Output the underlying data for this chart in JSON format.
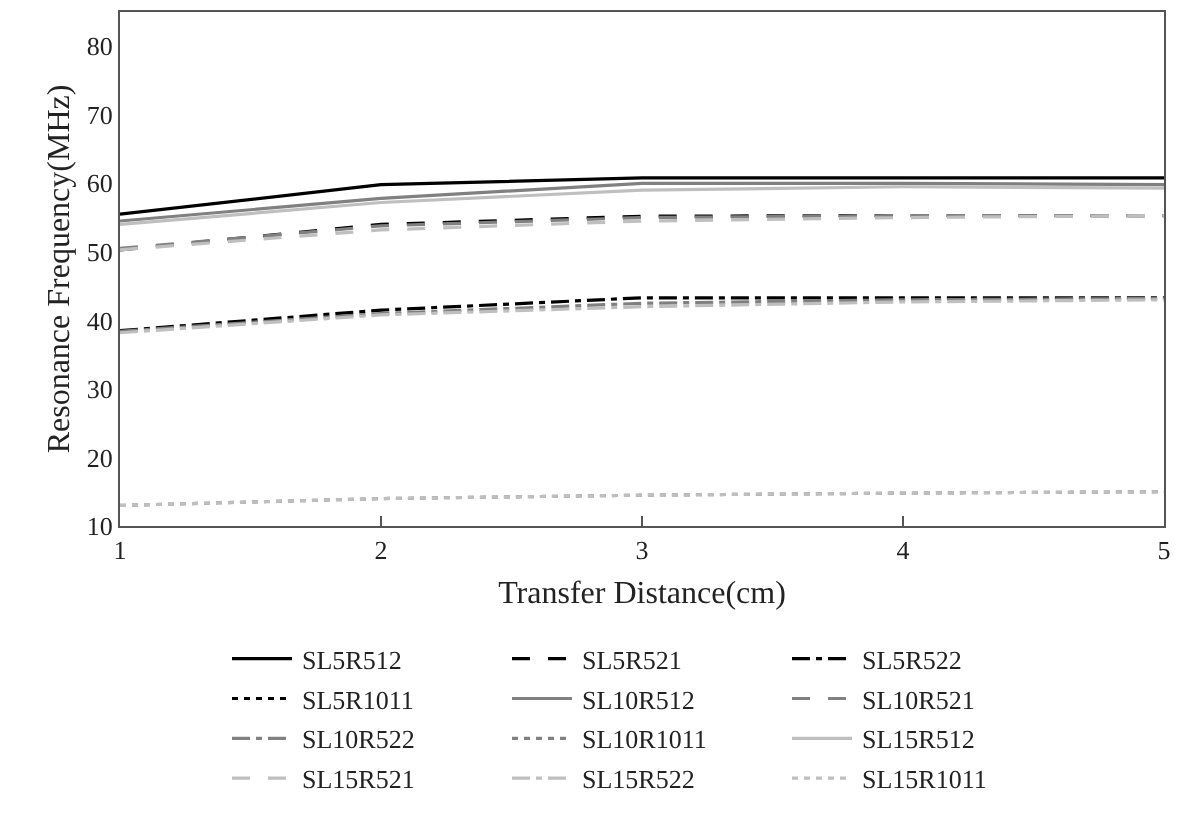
{
  "chart_data": {
    "type": "line",
    "xlabel": "Transfer Distance(cm)",
    "ylabel": "Resonance Frequency(MHz)",
    "x": [
      1,
      2,
      3,
      4,
      5
    ],
    "xlim": [
      1,
      5
    ],
    "xticks": [
      1,
      2,
      3,
      4,
      5
    ],
    "ylim": [
      10,
      85
    ],
    "yticks": [
      10,
      20,
      30,
      40,
      50,
      60,
      70,
      80
    ],
    "grid": false,
    "legend": "bottom",
    "marker": "none",
    "series": [
      {
        "name": "SL5R512",
        "color": "#000000",
        "line_style": "solid",
        "values": [
          55.5,
          59.8,
          60.8,
          60.8,
          60.8
        ]
      },
      {
        "name": "SL5R521",
        "color": "#000000",
        "line_style": "dashed",
        "values": [
          50.3,
          54,
          55.2,
          55.3,
          55.3
        ]
      },
      {
        "name": "SL5R522",
        "color": "#000000",
        "line_style": "dashdot",
        "values": [
          38.5,
          41.5,
          43.3,
          43.3,
          43.3
        ]
      },
      {
        "name": "SL5R1011",
        "color": "#000000",
        "line_style": "dotted",
        "values": [
          null,
          null,
          null,
          null,
          null
        ]
      },
      {
        "name": "SL10R512",
        "color": "#808080",
        "line_style": "solid",
        "values": [
          54.5,
          57.8,
          60,
          60,
          59.8
        ]
      },
      {
        "name": "SL10R521",
        "color": "#808080",
        "line_style": "dashed",
        "values": [
          50.5,
          53.8,
          55,
          55.3,
          55.3
        ]
      },
      {
        "name": "SL10R522",
        "color": "#808080",
        "line_style": "dashdot",
        "values": [
          38.4,
          41,
          42.5,
          43,
          43.2
        ]
      },
      {
        "name": "SL10R1011",
        "color": "#808080",
        "line_style": "dotted",
        "values": [
          13,
          14,
          14.5,
          14.8,
          15
        ]
      },
      {
        "name": "SL15R512",
        "color": "#bfbfbf",
        "line_style": "solid",
        "values": [
          54,
          57.2,
          59,
          59.5,
          59.3
        ]
      },
      {
        "name": "SL15R521",
        "color": "#bfbfbf",
        "line_style": "dashed",
        "values": [
          50.3,
          53.2,
          54.5,
          55,
          55.3
        ]
      },
      {
        "name": "SL15R522",
        "color": "#bfbfbf",
        "line_style": "dashdot",
        "values": [
          38.2,
          40.8,
          42,
          42.7,
          43
        ]
      },
      {
        "name": "SL15R1011",
        "color": "#bfbfbf",
        "line_style": "dotted",
        "values": [
          13,
          14,
          14.5,
          14.8,
          15
        ]
      }
    ]
  }
}
